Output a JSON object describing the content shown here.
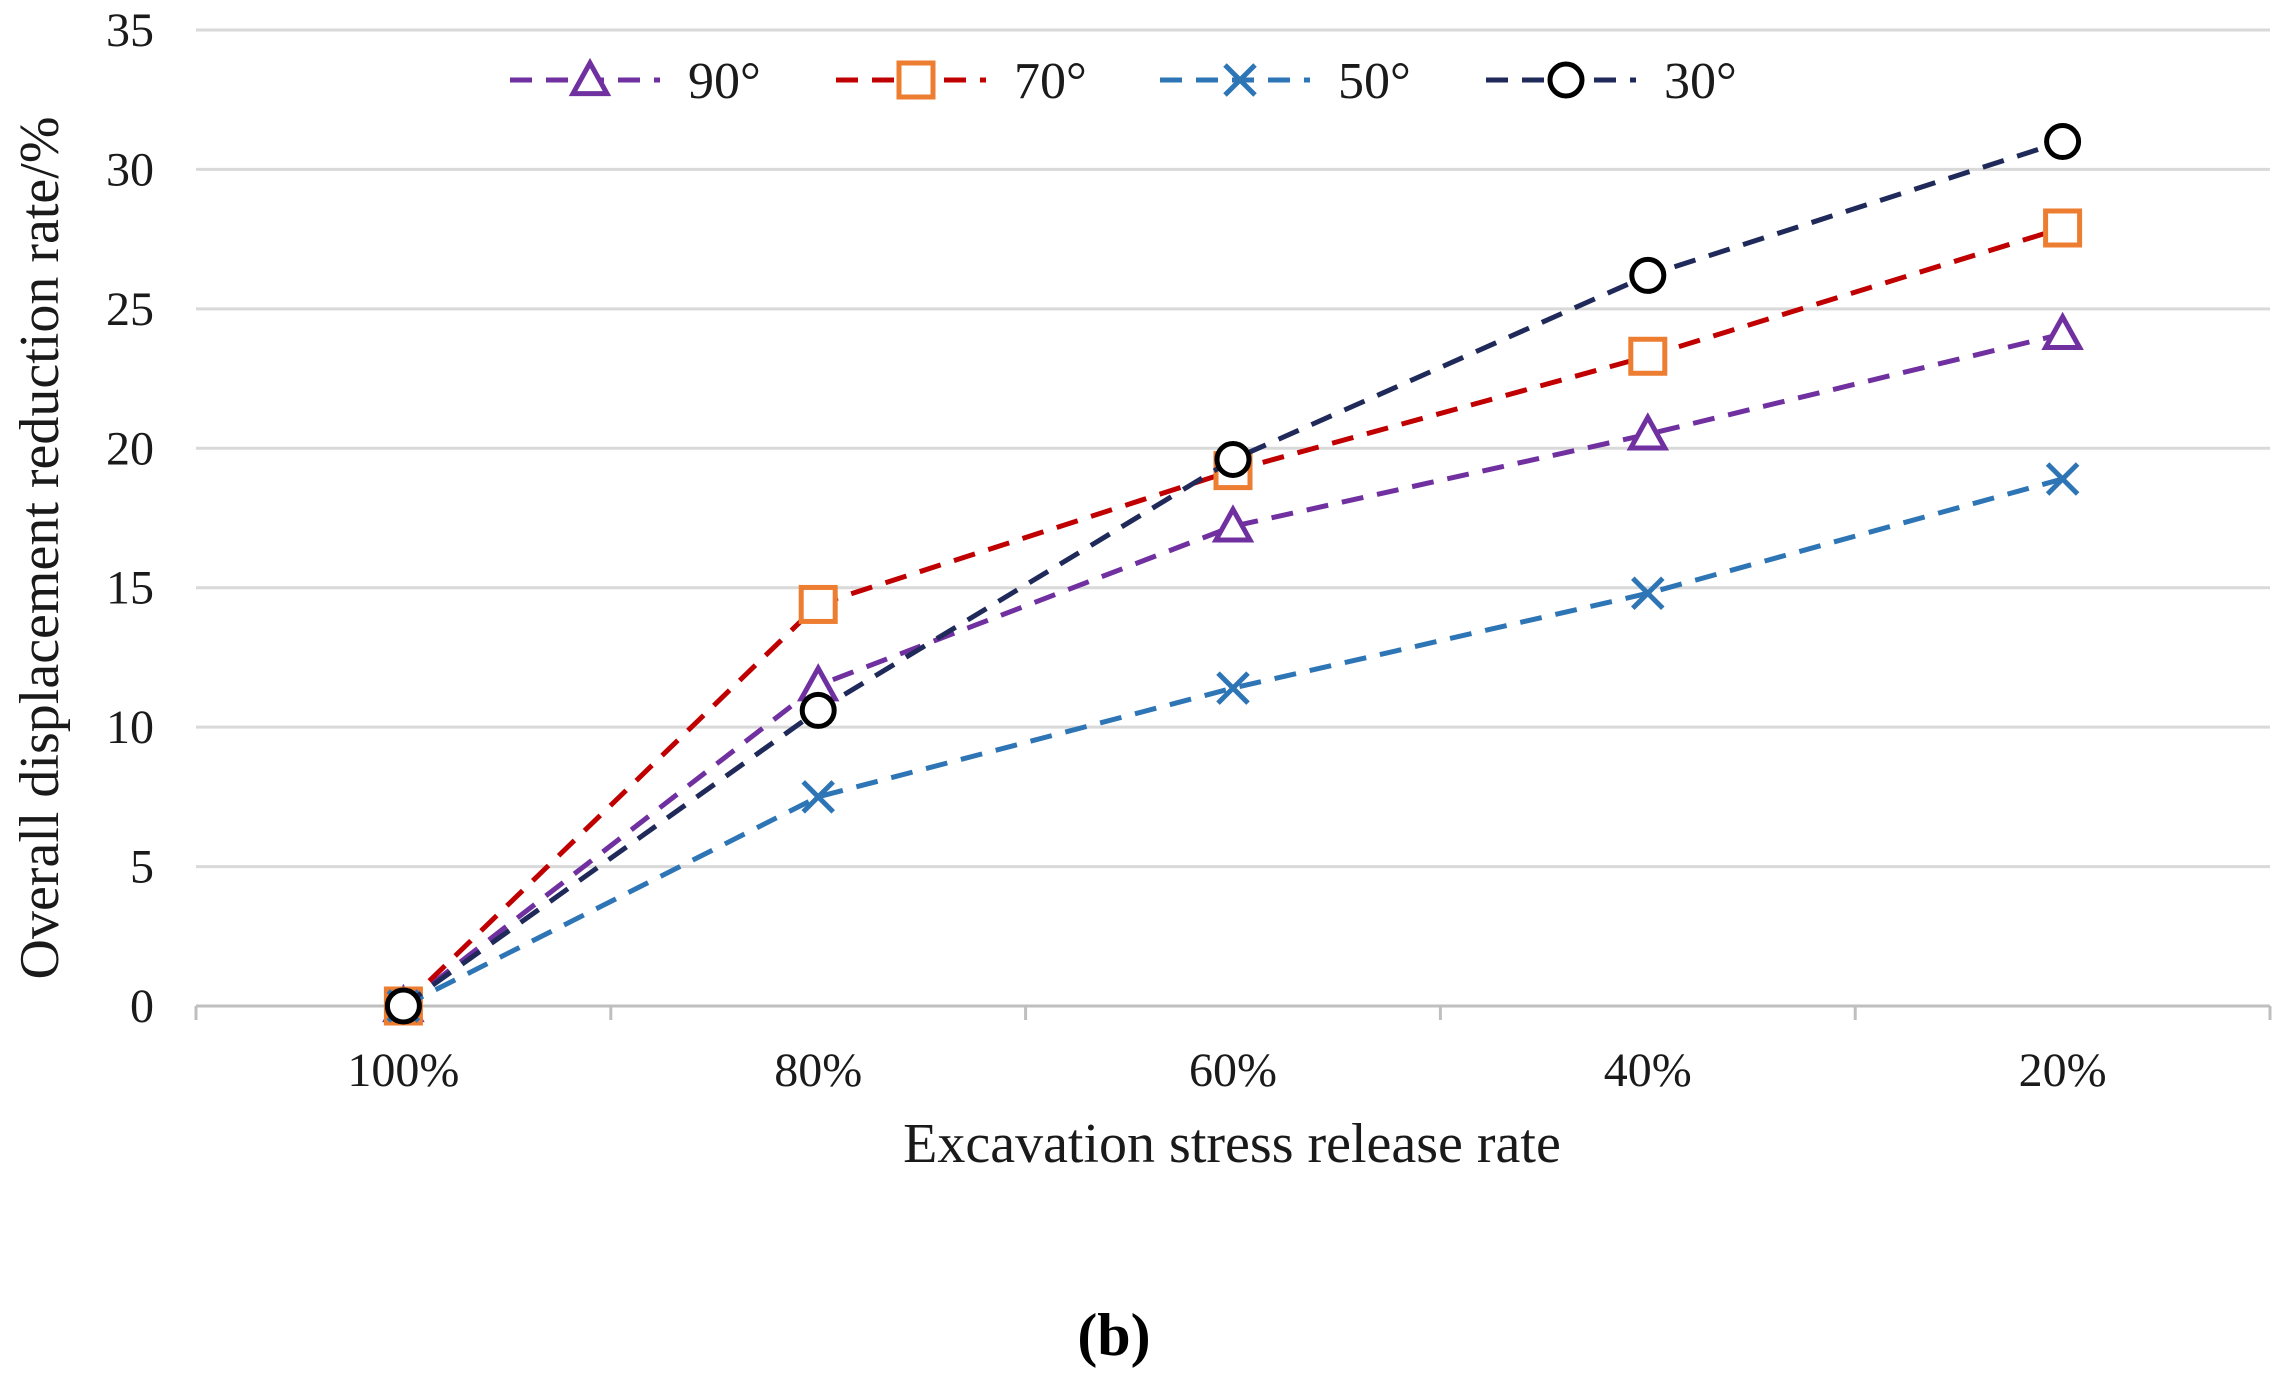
{
  "chart_data": {
    "type": "line",
    "title": "",
    "xlabel": "Excavation stress release rate",
    "ylabel": "Overall displacement  reduction rate/%",
    "categories": [
      "100%",
      "80%",
      "60%",
      "40%",
      "20%"
    ],
    "ylim": [
      0,
      35
    ],
    "yticks": [
      0,
      5,
      10,
      15,
      20,
      25,
      30,
      35
    ],
    "grid": true,
    "legend_position": "top",
    "series": [
      {
        "name": "90°",
        "marker": "triangle",
        "color": "#7030a0",
        "values": [
          0,
          11.5,
          17.2,
          20.5,
          24.1
        ]
      },
      {
        "name": "70°",
        "marker": "square",
        "color": "#c00000",
        "marker_color": "#ed7d31",
        "values": [
          0,
          14.4,
          19.2,
          23.3,
          27.9
        ]
      },
      {
        "name": "50°",
        "marker": "x",
        "color": "#2e75b6",
        "marker_color": "#2e75b6",
        "values": [
          0,
          7.5,
          11.4,
          14.8,
          18.9
        ]
      },
      {
        "name": "30°",
        "marker": "circle",
        "color": "#1f2a5a",
        "marker_color": "#000000",
        "values": [
          0,
          10.6,
          19.6,
          26.2,
          31.0
        ]
      }
    ]
  },
  "caption": "(b)"
}
